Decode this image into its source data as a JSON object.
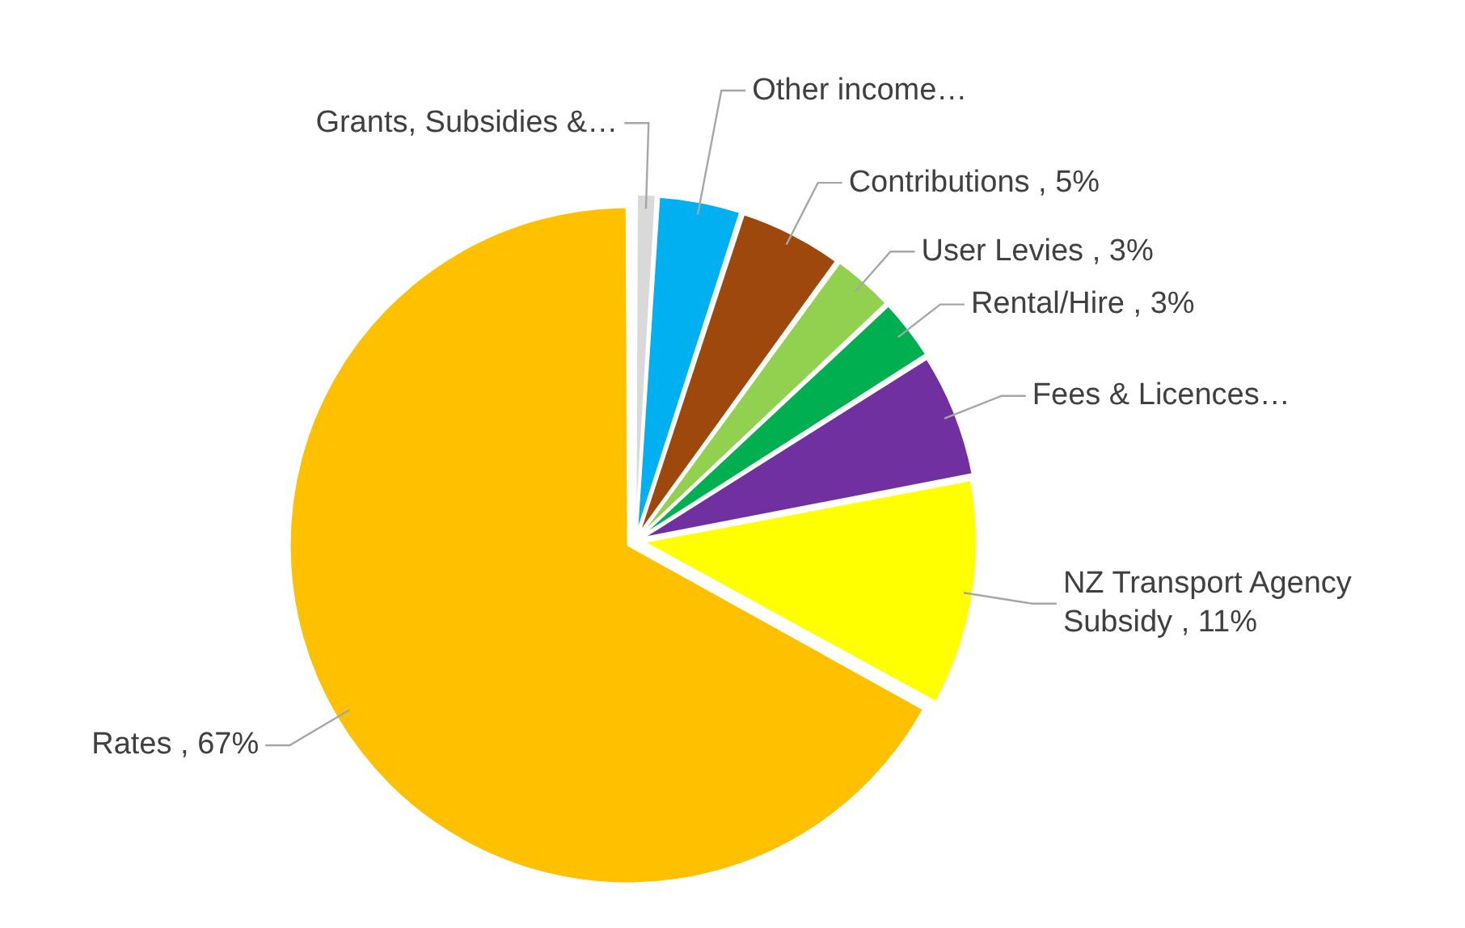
{
  "chart_data": {
    "type": "pie",
    "categories": [
      "Grants, Subsidies &…",
      "Other income…",
      "Contributions",
      "User Levies",
      "Rental/Hire",
      "Fees & Licences…",
      "NZ Transport Agency Subsidy",
      "Rates"
    ],
    "values": [
      1,
      4,
      5,
      3,
      3,
      6,
      11,
      67
    ],
    "value_labels": [
      null,
      null,
      "5%",
      "3%",
      "3%",
      null,
      "11%",
      "67%"
    ],
    "colors": [
      "#d9d9d9",
      "#00b0f0",
      "#9e480e",
      "#92d050",
      "#00b050",
      "#7030a0",
      "#ffff00",
      "#ffc000"
    ],
    "legend": false
  }
}
